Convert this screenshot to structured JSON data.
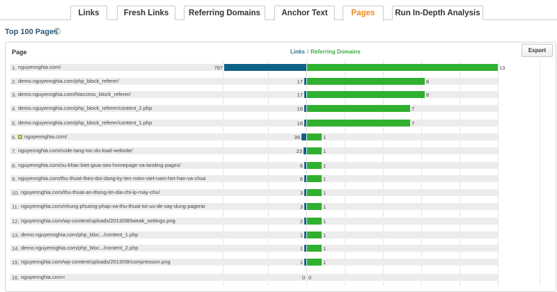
{
  "tabs": [
    {
      "label": "Links",
      "active": false
    },
    {
      "label": "Fresh Links",
      "active": false
    },
    {
      "label": "Referring Domains",
      "active": false
    },
    {
      "label": "Anchor Text",
      "active": false
    },
    {
      "label": "Pages",
      "active": true
    },
    {
      "label": "Run In-Depth Analysis",
      "active": false
    }
  ],
  "section_title": "Top 100 Pages",
  "table": {
    "page_header": "Page",
    "legend_links": "Links",
    "legend_separator": "/",
    "legend_referring": "Referring Domains",
    "export_label": "Export"
  },
  "colors": {
    "links_bar": "#0e6286",
    "referring_bar": "#2fb12f",
    "active_tab": "#ef8a1e",
    "title": "#2c5577"
  },
  "chart_data": {
    "type": "bar",
    "series": [
      {
        "name": "Links",
        "values": [
          787,
          17,
          17,
          16,
          16,
          39,
          23,
          6,
          6,
          3,
          3,
          2,
          1,
          1,
          1,
          0
        ]
      },
      {
        "name": "Referring Domains",
        "values": [
          13,
          8,
          8,
          7,
          7,
          1,
          1,
          1,
          1,
          1,
          1,
          1,
          1,
          1,
          1,
          0
        ]
      }
    ],
    "categories": [
      "nguyennghia.com/",
      "demo.nguyennghia.com/php_block_referer/",
      "demo.nguyennghia.com/htaccess_block_referer/",
      "demo.nguyennghia.com/php_block_referer/content_2.php",
      "demo.nguyennghia.com/php_block_referer/content_1.php",
      "nguyennghia.com/",
      "nguyennghia.com/code-tang-toc-do-load-website/",
      "nguyennghia.com/su-khac-biet-giua-seo-homepage-va-landing-pages/",
      "nguyennghia.com/thu-thuat-theo-doi-dang-ky-ten-mien-viet-nam-het-han-va-chua-(",
      "nguyennghia.com/thu-thuat-an-thong-tin-dia-chi-ip-may-chu/",
      "nguyennghia.com/nhung-phuong-phap-va-thu-thuat-toi-uu-de-xay-dung-pagerank/",
      "nguyennghia.com/wp-content/uploads/2013/08/tweak_settings.png",
      "demo.nguyennghia.com/php_bloc.../content_1.php",
      "demo.nguyennghia.com/php_bloc.../content_2.php",
      "nguyennghia.com/wp-content/uploads/2013/08/compression.png",
      "nguyennghia.com<"
    ]
  },
  "rows": [
    {
      "num": "1.",
      "url": "nguyennghia.com/",
      "lock": false,
      "links": "787",
      "rd": "13"
    },
    {
      "num": "2.",
      "url": "demo.nguyennghia.com/php_block_referer/",
      "lock": false,
      "links": "17",
      "rd": "8"
    },
    {
      "num": "3.",
      "url": "demo.nguyennghia.com/htaccess_block_referer/",
      "lock": false,
      "links": "17",
      "rd": "8"
    },
    {
      "num": "4.",
      "url": "demo.nguyennghia.com/php_block_referer/content_2.php",
      "lock": false,
      "links": "16",
      "rd": "7"
    },
    {
      "num": "5.",
      "url": "demo.nguyennghia.com/php_block_referer/content_1.php",
      "lock": false,
      "links": "16",
      "rd": "7"
    },
    {
      "num": "6.",
      "url": "nguyennghia.com/",
      "lock": true,
      "links": "39",
      "rd": "1"
    },
    {
      "num": "7.",
      "url": "nguyennghia.com/code-tang-toc-do-load-website/",
      "lock": false,
      "links": "23",
      "rd": "1"
    },
    {
      "num": "8.",
      "url": "nguyennghia.com/su-khac-biet-giua-seo-homepage-va-landing-pages/",
      "lock": false,
      "links": "6",
      "rd": "1"
    },
    {
      "num": "9.",
      "url": "nguyennghia.com/thu-thuat-theo-doi-dang-ky-ten-mien-viet-nam-het-han-va-chua-(",
      "lock": false,
      "links": "6",
      "rd": "1"
    },
    {
      "num": "10.",
      "url": "nguyennghia.com/thu-thuat-an-thong-tin-dia-chi-ip-may-chu/",
      "lock": false,
      "links": "3",
      "rd": "1"
    },
    {
      "num": "11.",
      "url": "nguyennghia.com/nhung-phuong-phap-va-thu-thuat-toi-uu-de-xay-dung-pagerank/",
      "lock": false,
      "links": "3",
      "rd": "1"
    },
    {
      "num": "12.",
      "url": "nguyennghia.com/wp-content/uploads/2013/08/tweak_settings.png",
      "lock": false,
      "links": "2",
      "rd": "1"
    },
    {
      "num": "13.",
      "url": "demo.nguyennghia.com/php_bloc.../content_1.php",
      "lock": false,
      "links": "1",
      "rd": "1"
    },
    {
      "num": "14.",
      "url": "demo.nguyennghia.com/php_bloc.../content_2.php",
      "lock": false,
      "links": "1",
      "rd": "1"
    },
    {
      "num": "15.",
      "url": "nguyennghia.com/wp-content/uploads/2013/08/compression.png",
      "lock": false,
      "links": "1",
      "rd": "1"
    },
    {
      "num": "16.",
      "url": "nguyennghia.com<",
      "lock": false,
      "links": "0",
      "rd": "0"
    }
  ]
}
